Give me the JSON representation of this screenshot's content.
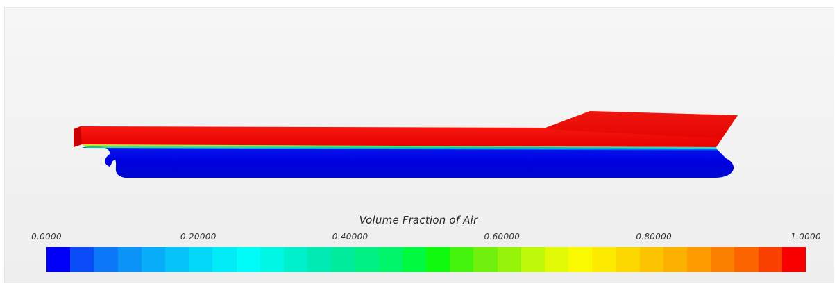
{
  "legend": {
    "title": "Volume Fraction of Air",
    "ticks": [
      "0.0000",
      "0.20000",
      "0.40000",
      "0.60000",
      "0.80000",
      "1.0000"
    ],
    "tick_values": [
      0.0,
      0.2,
      0.4,
      0.6,
      0.8,
      1.0
    ],
    "range": [
      0.0,
      1.0
    ],
    "band_count": 32,
    "band_colors": [
      "#0000f8",
      "#0a4cf8",
      "#0c78f8",
      "#0c94f8",
      "#08acf8",
      "#06c4f8",
      "#04d8f8",
      "#02ecf8",
      "#00fcf8",
      "#00f6e4",
      "#00f0cc",
      "#00eab4",
      "#00ec9c",
      "#00f084",
      "#00f46a",
      "#00fa40",
      "#10fa10",
      "#44f40c",
      "#70f00c",
      "#96f40a",
      "#bef808",
      "#e2fa06",
      "#fcfa00",
      "#fcea00",
      "#fcd800",
      "#fcc400",
      "#fcb000",
      "#fc9a00",
      "#fc8000",
      "#fc6400",
      "#fa4000",
      "#f80000"
    ]
  },
  "hull": {
    "air_color": "#f00000",
    "water_color": "#0000e6"
  }
}
